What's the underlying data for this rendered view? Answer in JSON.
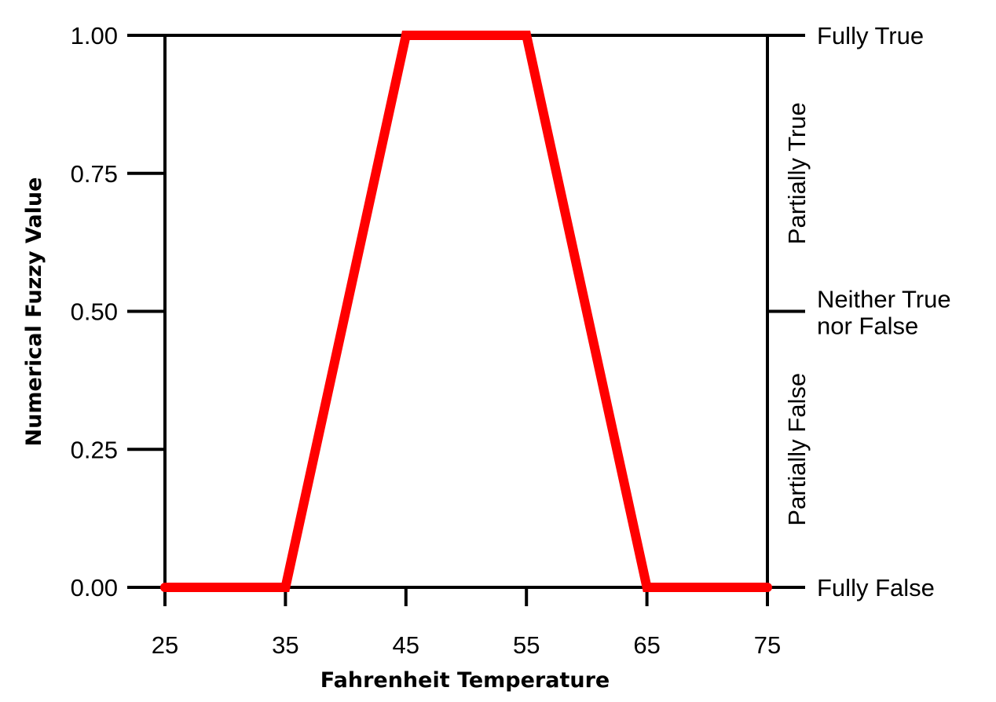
{
  "chart_data": {
    "type": "line",
    "xlabel": "Fahrenheit Temperature",
    "ylabel": "Numerical Fuzzy Value",
    "xlim": [
      25,
      75
    ],
    "ylim": [
      0,
      1
    ],
    "x_ticks": [
      "25",
      "35",
      "45",
      "55",
      "65",
      "75"
    ],
    "y_ticks": [
      "0.00",
      "0.25",
      "0.50",
      "0.75",
      "1.00"
    ],
    "series": [
      {
        "color": "#ff0000",
        "x": [
          25,
          35,
          45,
          55,
          65,
          75
        ],
        "y": [
          0,
          0,
          1,
          1,
          0,
          0
        ]
      }
    ],
    "right_axis": {
      "tick_labels": [
        {
          "value": 1.0,
          "text": "Fully True"
        },
        {
          "value": 0.5,
          "text": "Neither True nor False"
        },
        {
          "value": 0.0,
          "text": "Fully False"
        }
      ],
      "region_labels": [
        {
          "from": 0.5,
          "to": 1.0,
          "text": "Partially True"
        },
        {
          "from": 0.0,
          "to": 0.5,
          "text": "Partially False"
        }
      ]
    },
    "grid": false
  }
}
